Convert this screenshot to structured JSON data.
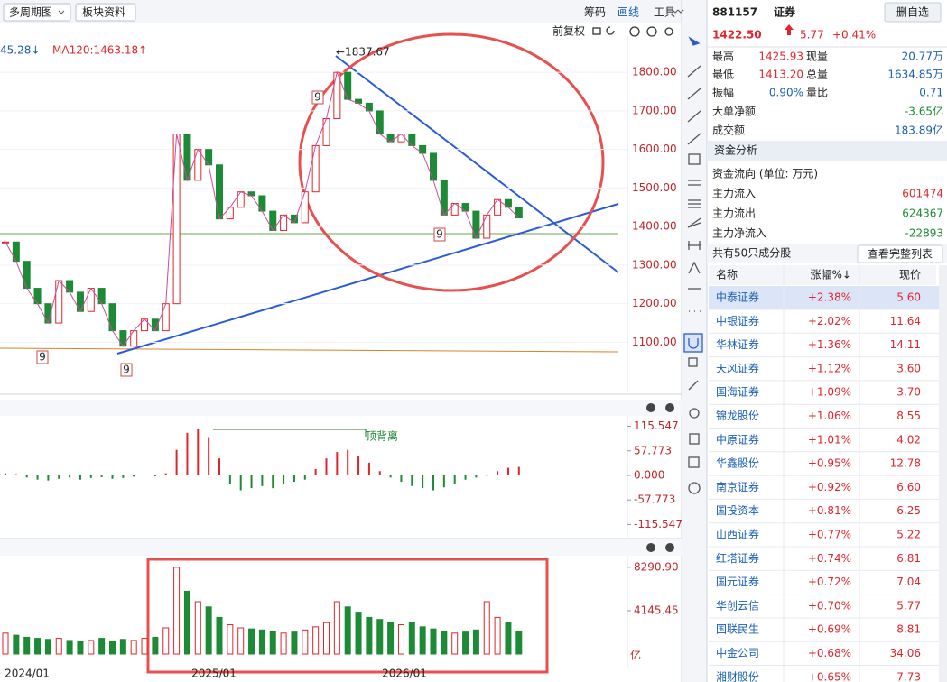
{
  "toolbar": {
    "period_button": "多周期图",
    "sector_button": "板块资料",
    "chips": "筹码",
    "draw": "画线",
    "tools": "工具",
    "adjust": "前复权"
  },
  "price_chart": {
    "ma_legend": [
      "45.28↓",
      "MA120:1463.18↑"
    ],
    "high_label": "←1837.67",
    "ylim": [
      970,
      1894
    ],
    "yticks": [
      {
        "value": 1100,
        "label": "1100.00"
      },
      {
        "value": 1200,
        "label": "1200.00"
      },
      {
        "value": 1300,
        "label": "1300.00"
      },
      {
        "value": 1400,
        "label": "1400.00"
      },
      {
        "value": 1500,
        "label": "1500.00"
      },
      {
        "value": 1600,
        "label": "1600.00"
      },
      {
        "value": 1700,
        "label": "1700.00"
      },
      {
        "value": 1800,
        "label": "1800.00"
      }
    ],
    "close": [
      1360,
      1310,
      1240,
      1200,
      1150,
      1260,
      1230,
      1180,
      1240,
      1200,
      1130,
      1090,
      1130,
      1160,
      1130,
      1200,
      1640,
      1520,
      1600,
      1560,
      1420,
      1450,
      1490,
      1480,
      1440,
      1390,
      1430,
      1410,
      1490,
      1610,
      1680,
      1800,
      1730,
      1720,
      1700,
      1640,
      1620,
      1640,
      1610,
      1590,
      1520,
      1430,
      1460,
      1440,
      1370,
      1430,
      1470,
      1450,
      1422.5
    ],
    "td_marks": [
      "9",
      "9",
      "9",
      "9"
    ]
  },
  "macd_chart": {
    "ylim": [
      -140,
      140
    ],
    "yticks": [
      {
        "value": -115.547,
        "label": "-115.547"
      },
      {
        "value": -57.773,
        "label": "-57.773"
      },
      {
        "value": 0,
        "label": "0.000"
      },
      {
        "value": 57.773,
        "label": "57.773"
      },
      {
        "value": 115.547,
        "label": "115.547"
      }
    ],
    "values": [
      5,
      3,
      -5,
      -10,
      -12,
      -8,
      -5,
      -10,
      -6,
      -4,
      -8,
      -6,
      -3,
      2,
      -2,
      5,
      60,
      100,
      110,
      90,
      40,
      -20,
      -35,
      -30,
      -25,
      -30,
      -20,
      -15,
      -10,
      15,
      40,
      55,
      60,
      45,
      30,
      10,
      -5,
      -15,
      -25,
      -30,
      -35,
      -28,
      -20,
      -10,
      -5,
      0,
      10,
      18,
      20
    ],
    "annotation": "顶背离"
  },
  "volume_chart": {
    "ylim": [
      0,
      10000
    ],
    "yticks": [
      {
        "value": 4145.45,
        "label": "4145.45"
      },
      {
        "value": 8290.9,
        "label": "8290.90"
      }
    ],
    "unit": "亿",
    "values": [
      2000,
      1800,
      1600,
      1500,
      1400,
      1500,
      1300,
      1200,
      1300,
      1500,
      1200,
      1400,
      1300,
      1500,
      1600,
      2500,
      8290,
      6000,
      5000,
      4500,
      3500,
      2800,
      2500,
      2400,
      2300,
      2200,
      2000,
      2100,
      2300,
      2600,
      3000,
      5000,
      4500,
      4000,
      3500,
      3300,
      3000,
      2800,
      3000,
      2600,
      2400,
      2200,
      2000,
      2100,
      2300,
      5000,
      3500,
      3000,
      2200
    ]
  },
  "x_labels": [
    "2024/01",
    "2025/01",
    "2026/01"
  ],
  "quote": {
    "code": "881157",
    "name": "证券",
    "button": "删自选",
    "price": "1422.50",
    "change": "5.77",
    "change_pct": "+0.41%",
    "stats": [
      {
        "label": "最高",
        "value": "1425.93"
      },
      {
        "label": "现量",
        "value": "20.77万"
      },
      {
        "label": "最低",
        "value": "1413.20"
      },
      {
        "label": "总量",
        "value": "1634.85万"
      },
      {
        "label": "振幅",
        "value": "0.90%"
      },
      {
        "label": "量比",
        "value": "0.71"
      }
    ],
    "big_net": {
      "label": "大单净额",
      "value": "-3.65亿"
    },
    "turnover": {
      "label": "成交额",
      "value": "183.89亿"
    }
  },
  "fund": {
    "title": "资金分析",
    "subtitle": "资金流向 (单位: 万元)",
    "rows": [
      {
        "label": "主力流入",
        "value": "601474"
      },
      {
        "label": "主力流出",
        "value": "624367"
      },
      {
        "label": "主力净流入",
        "value": "-22893"
      }
    ]
  },
  "constituents": {
    "count_text": "共有50只成分股",
    "button": "查看完整列表",
    "header": [
      "名称",
      "涨幅%↓",
      "现价"
    ],
    "rows": [
      [
        "中泰证券",
        "+2.38%",
        "5.60"
      ],
      [
        "中银证券",
        "+2.02%",
        "11.64"
      ],
      [
        "华林证券",
        "+1.36%",
        "14.11"
      ],
      [
        "天风证券",
        "+1.12%",
        "3.60"
      ],
      [
        "国海证券",
        "+1.09%",
        "3.70"
      ],
      [
        "锦龙股份",
        "+1.06%",
        "8.55"
      ],
      [
        "中原证券",
        "+1.01%",
        "4.02"
      ],
      [
        "华鑫股份",
        "+0.95%",
        "12.78"
      ],
      [
        "南京证券",
        "+0.92%",
        "6.60"
      ],
      [
        "国投资本",
        "+0.81%",
        "6.25"
      ],
      [
        "山西证券",
        "+0.77%",
        "5.22"
      ],
      [
        "红塔证券",
        "+0.74%",
        "6.81"
      ],
      [
        "国元证券",
        "+0.72%",
        "7.04"
      ],
      [
        "华创云信",
        "+0.70%",
        "5.77"
      ],
      [
        "国联民生",
        "+0.69%",
        "8.81"
      ],
      [
        "中金公司",
        "+0.68%",
        "34.06"
      ],
      [
        "湘财股份",
        "+0.65%",
        "7.73"
      ]
    ]
  }
}
